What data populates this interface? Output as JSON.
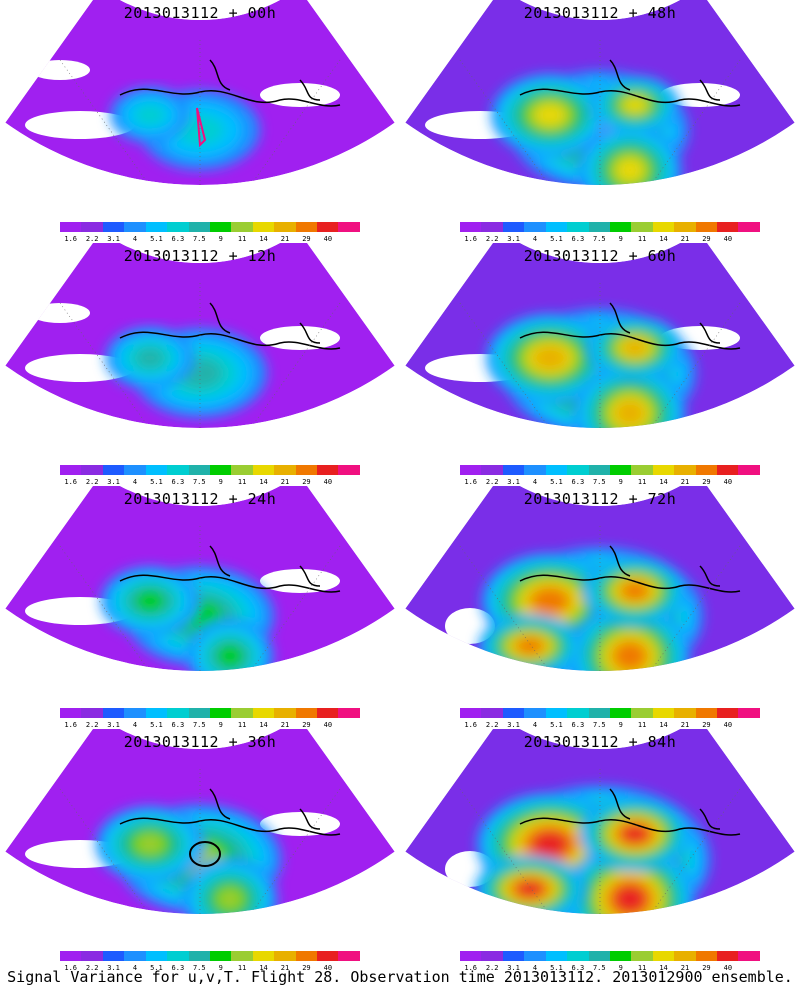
{
  "panels": [
    {
      "title": "2013013112 + 00h",
      "intensity": 0,
      "flight_track": true
    },
    {
      "title": "2013013112 + 48h",
      "intensity": 4
    },
    {
      "title": "2013013112 + 12h",
      "intensity": 1
    },
    {
      "title": "2013013112 + 60h",
      "intensity": 5
    },
    {
      "title": "2013013112 + 24h",
      "intensity": 2
    },
    {
      "title": "2013013112 + 72h",
      "intensity": 6
    },
    {
      "title": "2013013112 + 36h",
      "intensity": 3,
      "flight_track": true
    },
    {
      "title": "2013013112 + 84h",
      "intensity": 7
    }
  ],
  "colorbar": {
    "labels": [
      "1.6",
      "2.2",
      "3.1",
      "4",
      "5.1",
      "6.3",
      "7.5",
      "9",
      "11",
      "14",
      "21",
      "29",
      "40"
    ],
    "colors": [
      "#a020f0",
      "#8a2be2",
      "#1e5bff",
      "#1e90ff",
      "#00bfff",
      "#00ced1",
      "#20b2aa",
      "#00cd00",
      "#9acd32",
      "#e8d800",
      "#e8b000",
      "#f07800",
      "#e82020",
      "#f01080"
    ]
  },
  "footer": "Signal Variance for u,v,T. Flight 28. Observation time 2013013112. 2013012900 ensemble."
}
